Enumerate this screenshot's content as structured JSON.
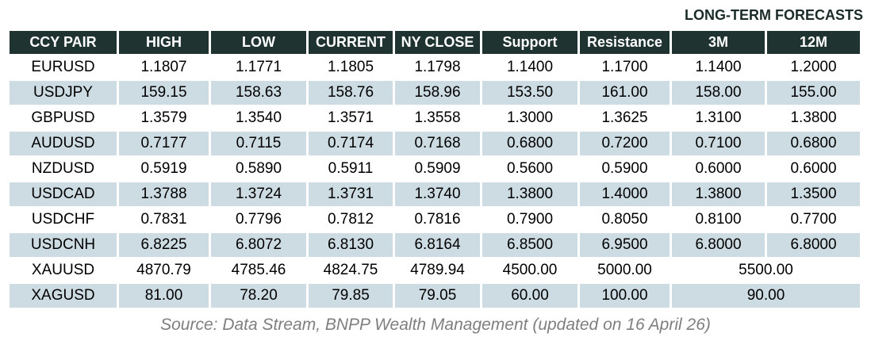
{
  "title": "LONG-TERM FORECASTS",
  "table": {
    "columns": [
      "CCY PAIR",
      "HIGH",
      "LOW",
      "CURRENT",
      "NY CLOSE",
      "Support",
      "Resistance",
      "3M",
      "12M"
    ],
    "rows": [
      {
        "pair": "EURUSD",
        "values": [
          "1.1807",
          "1.1771",
          "1.1805",
          "1.1798",
          "1.1400",
          "1.1700",
          "1.1400",
          "1.2000"
        ]
      },
      {
        "pair": "USDJPY",
        "values": [
          "159.15",
          "158.63",
          "158.76",
          "158.96",
          "153.50",
          "161.00",
          "158.00",
          "155.00"
        ]
      },
      {
        "pair": "GBPUSD",
        "values": [
          "1.3579",
          "1.3540",
          "1.3571",
          "1.3558",
          "1.3000",
          "1.3625",
          "1.3100",
          "1.3800"
        ]
      },
      {
        "pair": "AUDUSD",
        "values": [
          "0.7177",
          "0.7115",
          "0.7174",
          "0.7168",
          "0.6800",
          "0.7200",
          "0.7100",
          "0.6800"
        ]
      },
      {
        "pair": "NZDUSD",
        "values": [
          "0.5919",
          "0.5890",
          "0.5911",
          "0.5909",
          "0.5600",
          "0.5900",
          "0.6000",
          "0.6000"
        ]
      },
      {
        "pair": "USDCAD",
        "values": [
          "1.3788",
          "1.3724",
          "1.3731",
          "1.3740",
          "1.3800",
          "1.4000",
          "1.3800",
          "1.3500"
        ]
      },
      {
        "pair": "USDCHF",
        "values": [
          "0.7831",
          "0.7796",
          "0.7812",
          "0.7816",
          "0.7900",
          "0.8050",
          "0.8100",
          "0.7700"
        ]
      },
      {
        "pair": "USDCNH",
        "values": [
          "6.8225",
          "6.8072",
          "6.8130",
          "6.8164",
          "6.8500",
          "6.9500",
          "6.8000",
          "6.8000"
        ]
      },
      {
        "pair": "XAUUSD",
        "values": [
          "4870.79",
          "4785.46",
          "4824.75",
          "4789.94",
          "4500.00",
          "5000.00"
        ],
        "merged_forecast": "5500.00"
      },
      {
        "pair": "XAGUSD",
        "values": [
          "81.00",
          "78.20",
          "79.85",
          "79.05",
          "60.00",
          "100.00"
        ],
        "merged_forecast": "90.00"
      }
    ]
  },
  "footer": {
    "source": "Source: Data Stream, BNPP Wealth Management (updated on 16 April 26)"
  },
  "colors": {
    "header_bg": "#1f3431",
    "stripe_bg": "#cddce3",
    "forecast_label_text": "#1b2b28",
    "source_text": "#7f7f7f"
  }
}
